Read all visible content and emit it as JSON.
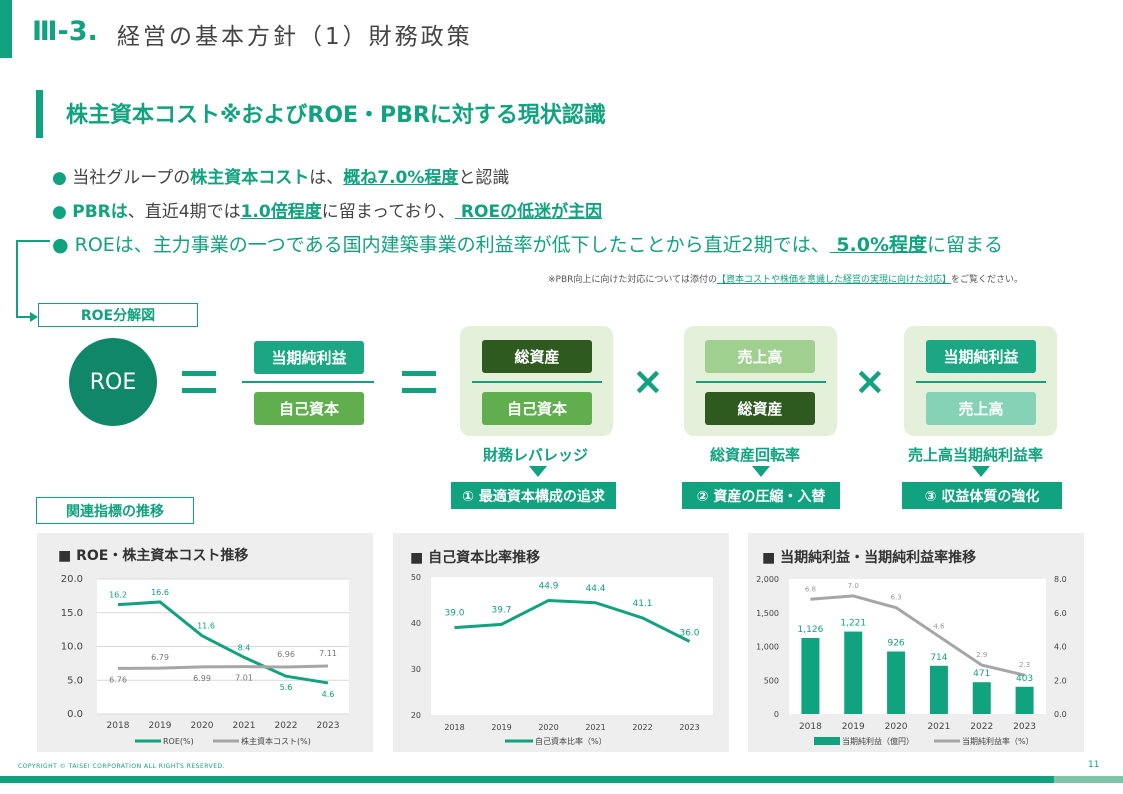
{
  "header": {
    "section_number": "Ⅲ-3.",
    "title": "経営の基本方針（1）財務政策"
  },
  "subheading": "株主資本コスト※およびROE・PBRに対する現状認識",
  "bullets": {
    "b1": {
      "dot": "●",
      "t1": "当社グループの",
      "h1": "株主資本コスト",
      "t2": "は、",
      "h2": "概ね7.0%程度",
      "t3": "と認識"
    },
    "b2": {
      "dot": "●",
      "h1": "PBRは",
      "t1": "、直近4期では",
      "h2": "1.0倍程度",
      "t2": "に留まっており、",
      "h3": " ROEの低迷が主因"
    },
    "b3": {
      "dot": "●",
      "t1": "ROEは、主力事業の一つである国内建築事業の利益率が低下したことから直近2期では、",
      "h1": " 5.0%程度",
      "t2": "に留まる"
    }
  },
  "note": {
    "prefix": "※PBR向上に向けた対応については添付の",
    "link": "【資本コストや株価を意識した経営の実現に向けた対応】",
    "suffix": "をご覧ください。"
  },
  "decomposition": {
    "label": "ROE分解図",
    "roe": "ROE",
    "net_income": "当期純利益",
    "equity": "自己資本",
    "total_assets": "総資産",
    "equity2": "自己資本",
    "sales": "売上高",
    "total_assets2": "総資産",
    "net_income2": "当期純利益",
    "sales2": "売上高",
    "factors": [
      "財務レバレッジ",
      "総資産回転率",
      "売上高当期純利益率"
    ],
    "actions": [
      "① 最適資本構成の追求",
      "② 資産の圧縮・入替",
      "③ 収益体質の強化"
    ]
  },
  "related_label": "関連指標の推移",
  "charts": {
    "c1_title": "■  ROE・株主資本コスト推移",
    "c2_title": "■ 自己資本比率推移",
    "c3_title": "■ 当期純利益・当期純利益率推移"
  },
  "chart_data": [
    {
      "type": "line",
      "title": "ROE・株主資本コスト推移",
      "x": [
        "2018",
        "2019",
        "2020",
        "2021",
        "2022",
        "2023"
      ],
      "series": [
        {
          "name": "ROE(%)",
          "values": [
            16.2,
            16.6,
            11.6,
            8.4,
            5.6,
            4.6
          ],
          "labels": [
            "16.2",
            "16.6",
            "11.6",
            "8.4",
            "5.6",
            "4.6"
          ]
        },
        {
          "name": "株主資本コスト(%)",
          "values": [
            6.76,
            6.79,
            6.99,
            7.01,
            6.96,
            7.11
          ],
          "labels": [
            "6.76",
            "6.79",
            "6.99",
            "7.01",
            "6.96",
            "7.11"
          ]
        }
      ],
      "ylim": [
        0,
        20
      ],
      "yticks": [
        "0.0",
        "5.0",
        "10.0",
        "15.0",
        "20.0"
      ],
      "colors": [
        "#11a27f",
        "#a6a6a6"
      ],
      "grid": true
    },
    {
      "type": "line",
      "title": "自己資本比率推移",
      "x": [
        "2018",
        "2019",
        "2020",
        "2021",
        "2022",
        "2023"
      ],
      "series": [
        {
          "name": "自己資本比率（%）",
          "values": [
            39.0,
            39.7,
            44.9,
            44.4,
            41.1,
            36.0
          ],
          "labels": [
            "39.0",
            "39.7",
            "44.9",
            "44.4",
            "41.1",
            "36.0"
          ]
        }
      ],
      "ylim": [
        20,
        50
      ],
      "yticks": [
        "20",
        "30",
        "40",
        "50"
      ],
      "colors": [
        "#11a27f"
      ],
      "grid": false
    },
    {
      "type": "bar",
      "title": "当期純利益・当期純利益率推移",
      "categories": [
        "2018",
        "2019",
        "2020",
        "2021",
        "2022",
        "2023"
      ],
      "series": [
        {
          "name": "当期純利益（億円）",
          "values": [
            1126,
            1221,
            926,
            714,
            471,
            403
          ],
          "labels": [
            "1,126",
            "1,221",
            "926",
            "714",
            "471",
            "403"
          ]
        },
        {
          "name": "当期純利益率（%）",
          "type": "line",
          "axis": "right",
          "values": [
            6.8,
            7.0,
            6.3,
            4.6,
            2.9,
            2.3
          ],
          "labels": [
            "6.8",
            "7.0",
            "6.3",
            "4.6",
            "2.9",
            "2.3"
          ]
        }
      ],
      "ylim": [
        0,
        2000
      ],
      "yticks": [
        "0",
        "500",
        "1,000",
        "1,500",
        "2,000"
      ],
      "y2lim": [
        0,
        8
      ],
      "y2ticks": [
        "0.0",
        "2.0",
        "4.0",
        "6.0",
        "8.0"
      ],
      "colors": [
        "#11a27f",
        "#a6a6a6"
      ],
      "grid": false
    }
  ],
  "footer": {
    "copyright": "COPYRIGHT © TAISEI CORPORATION ALL RIGHTS RESERVED.",
    "page": "11"
  }
}
